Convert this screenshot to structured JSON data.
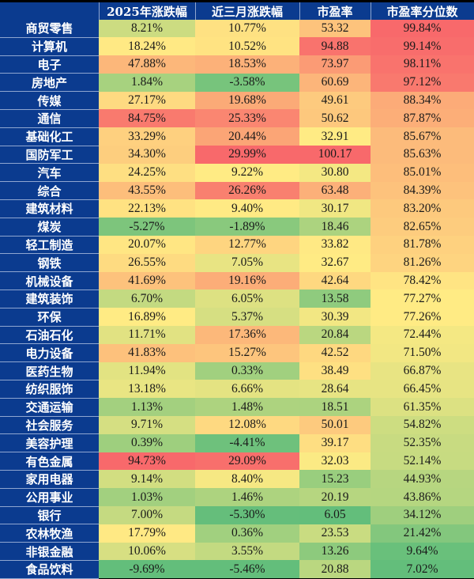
{
  "chart_data": {
    "type": "heatmap",
    "columns": [
      "2025年涨跌幅",
      "近三月涨跌幅",
      "市盈率",
      "市盈率分位数"
    ],
    "color_scale": {
      "low": "#63be7b",
      "mid": "#ffeb84",
      "high": "#f8696b"
    },
    "rows": [
      {
        "name": "商贸零售",
        "values": [
          "8.21%",
          "10.77%",
          "53.32",
          "99.84%"
        ]
      },
      {
        "name": "计算机",
        "values": [
          "18.24%",
          "10.52%",
          "94.88",
          "99.14%"
        ]
      },
      {
        "name": "电子",
        "values": [
          "47.88%",
          "18.53%",
          "73.97",
          "98.11%"
        ]
      },
      {
        "name": "房地产",
        "values": [
          "1.84%",
          "-3.58%",
          "60.69",
          "97.12%"
        ]
      },
      {
        "name": "传媒",
        "values": [
          "27.17%",
          "19.68%",
          "49.61",
          "88.34%"
        ]
      },
      {
        "name": "通信",
        "values": [
          "84.75%",
          "25.33%",
          "50.62",
          "87.87%"
        ]
      },
      {
        "name": "基础化工",
        "values": [
          "33.29%",
          "20.44%",
          "32.91",
          "85.67%"
        ]
      },
      {
        "name": "国防军工",
        "values": [
          "34.30%",
          "29.99%",
          "100.17",
          "85.63%"
        ]
      },
      {
        "name": "汽车",
        "values": [
          "24.25%",
          "9.22%",
          "30.80",
          "85.01%"
        ]
      },
      {
        "name": "综合",
        "values": [
          "43.55%",
          "26.26%",
          "63.48",
          "84.39%"
        ]
      },
      {
        "name": "建筑材料",
        "values": [
          "22.13%",
          "9.40%",
          "30.17",
          "83.20%"
        ]
      },
      {
        "name": "煤炭",
        "values": [
          "-5.27%",
          "-1.89%",
          "18.46",
          "82.65%"
        ]
      },
      {
        "name": "轻工制造",
        "values": [
          "20.07%",
          "12.77%",
          "33.82",
          "81.78%"
        ]
      },
      {
        "name": "钢铁",
        "values": [
          "26.55%",
          "7.05%",
          "32.67",
          "81.26%"
        ]
      },
      {
        "name": "机械设备",
        "values": [
          "41.69%",
          "19.16%",
          "42.64",
          "78.42%"
        ]
      },
      {
        "name": "建筑装饰",
        "values": [
          "6.70%",
          "6.05%",
          "13.58",
          "77.27%"
        ]
      },
      {
        "name": "环保",
        "values": [
          "16.89%",
          "5.37%",
          "30.39",
          "77.26%"
        ]
      },
      {
        "name": "石油石化",
        "values": [
          "11.71%",
          "17.36%",
          "20.84",
          "72.44%"
        ]
      },
      {
        "name": "电力设备",
        "values": [
          "41.83%",
          "15.27%",
          "42.52",
          "71.50%"
        ]
      },
      {
        "name": "医药生物",
        "values": [
          "11.94%",
          "0.33%",
          "38.49",
          "66.87%"
        ]
      },
      {
        "name": "纺织服饰",
        "values": [
          "13.18%",
          "6.66%",
          "28.64",
          "66.45%"
        ]
      },
      {
        "name": "交通运输",
        "values": [
          "1.13%",
          "1.48%",
          "18.51",
          "61.35%"
        ]
      },
      {
        "name": "社会服务",
        "values": [
          "9.71%",
          "12.08%",
          "50.01",
          "54.82%"
        ]
      },
      {
        "name": "美容护理",
        "values": [
          "0.39%",
          "-4.41%",
          "39.17",
          "52.35%"
        ]
      },
      {
        "name": "有色金属",
        "values": [
          "94.73%",
          "29.09%",
          "32.03",
          "52.14%"
        ]
      },
      {
        "name": "家用电器",
        "values": [
          "9.14%",
          "8.40%",
          "15.23",
          "44.93%"
        ]
      },
      {
        "name": "公用事业",
        "values": [
          "1.03%",
          "1.46%",
          "20.19",
          "43.86%"
        ]
      },
      {
        "name": "银行",
        "values": [
          "7.00%",
          "-5.30%",
          "6.05",
          "34.12%"
        ]
      },
      {
        "name": "农林牧渔",
        "values": [
          "17.79%",
          "0.36%",
          "23.53",
          "21.42%"
        ]
      },
      {
        "name": "非银金融",
        "values": [
          "10.06%",
          "3.55%",
          "13.26",
          "9.64%"
        ]
      },
      {
        "name": "食品饮料",
        "values": [
          "-9.69%",
          "-5.46%",
          "20.88",
          "7.02%"
        ]
      }
    ]
  }
}
